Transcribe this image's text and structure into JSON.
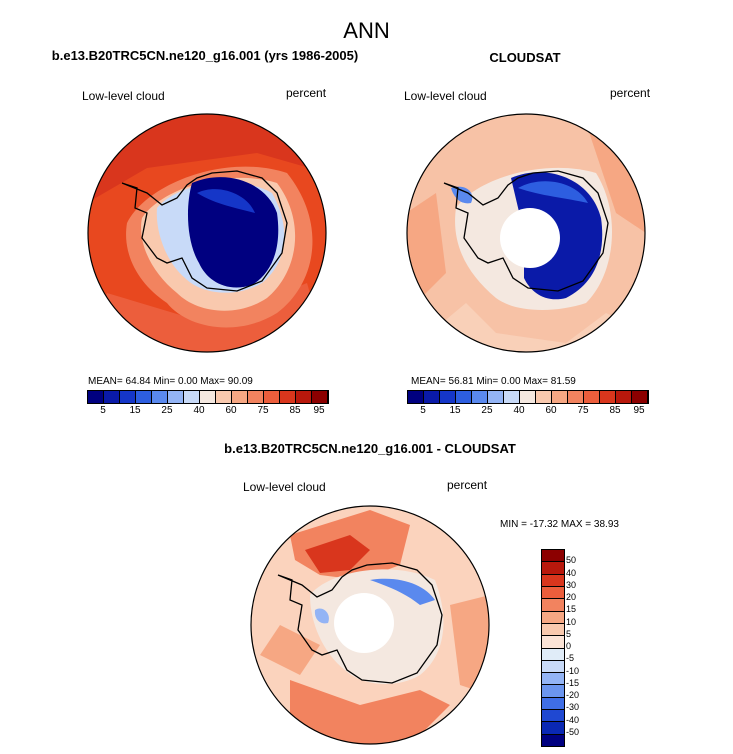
{
  "title": "ANN",
  "panels": [
    {
      "title": "b.e13.B20TRC5CN.ne120_g16.001 (yrs 1986-2005)",
      "left_label": "Low-level cloud",
      "right_label": "percent",
      "stats": "MEAN=  64.84   Min=    0.00   Max=   90.09",
      "base_color": "#e8481f",
      "interior_color": "#000080"
    },
    {
      "title": "CLOUDSAT",
      "left_label": "Low-level cloud",
      "right_label": "percent",
      "stats": "MEAN=  56.81   Min=    0.00   Max=   81.59",
      "base_color": "#f7c2a6",
      "interior_color": "#0a1aa8"
    },
    {
      "title": "b.e13.B20TRC5CN.ne120_g16.001 - CLOUDSAT",
      "left_label": "Low-level cloud",
      "right_label": "percent",
      "stats": "MIN = -17.32 MAX =  38.93",
      "base_color": "#fbd3bd",
      "interior_color": "#ffffff"
    }
  ],
  "colorbar_abs": {
    "colors": [
      "#000080",
      "#0a1aa8",
      "#1536c8",
      "#2d5ee0",
      "#5a89ee",
      "#93b4f5",
      "#c8daf8",
      "#f4e8e0",
      "#f9c9ae",
      "#f6a783",
      "#f2835f",
      "#ec5e3c",
      "#d9361d",
      "#b8180c",
      "#8c0000"
    ],
    "labels": [
      "5",
      "15",
      "25",
      "40",
      "60",
      "75",
      "85",
      "95"
    ]
  },
  "colorbar_diff": {
    "colors": [
      "#8c0000",
      "#b8180c",
      "#d9361d",
      "#ec5e3c",
      "#f2835f",
      "#f6a783",
      "#f9c9ae",
      "#fbe3d6",
      "#e0ecf8",
      "#c8daf8",
      "#93b4f5",
      "#6b95ee",
      "#3f6ee6",
      "#1f48d2",
      "#0a28b4",
      "#000080"
    ],
    "labels": [
      "50",
      "40",
      "30",
      "20",
      "15",
      "10",
      "5",
      "0",
      "-5",
      "-10",
      "-15",
      "-20",
      "-30",
      "-40",
      "-50"
    ]
  }
}
